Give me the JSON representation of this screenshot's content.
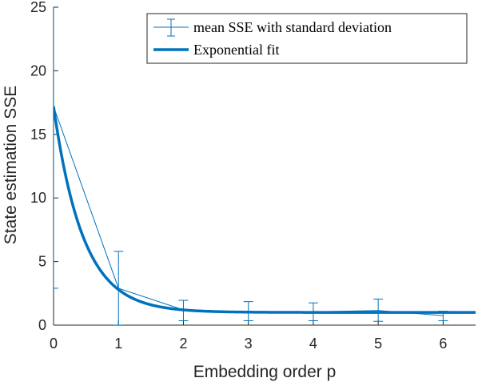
{
  "chart_data": {
    "type": "line",
    "xlabel": "Embedding order p",
    "ylabel": "State estimation SSE",
    "xlim": [
      0,
      6.5
    ],
    "ylim": [
      0,
      25
    ],
    "xticks": [
      "0",
      "1",
      "2",
      "3",
      "4",
      "5",
      "6"
    ],
    "yticks": [
      "0",
      "5",
      "10",
      "15",
      "20",
      "25"
    ],
    "grid": false,
    "legend_location": "top-right",
    "series": [
      {
        "name": "mean SSE with standard deviation",
        "style": "thin line with error bars",
        "color": "#0072BD",
        "x": [
          0,
          1,
          2,
          3,
          4,
          5,
          6
        ],
        "y": [
          17.2,
          2.9,
          1.2,
          1.05,
          1.05,
          1.15,
          0.75
        ],
        "error_low": [
          2.9,
          0,
          0.35,
          0.35,
          0.35,
          0.3,
          0.35
        ],
        "error_high": [
          31.5,
          5.8,
          1.95,
          1.85,
          1.75,
          2.05,
          1.1
        ]
      },
      {
        "name": "Exponential fit",
        "style": "thick line",
        "color": "#0072BD",
        "model": "y = a*exp(-b*x) + c",
        "params": {
          "a": 16.2,
          "b": 2.2,
          "c": 1.0
        },
        "x_range": [
          0,
          6.5
        ]
      }
    ]
  }
}
